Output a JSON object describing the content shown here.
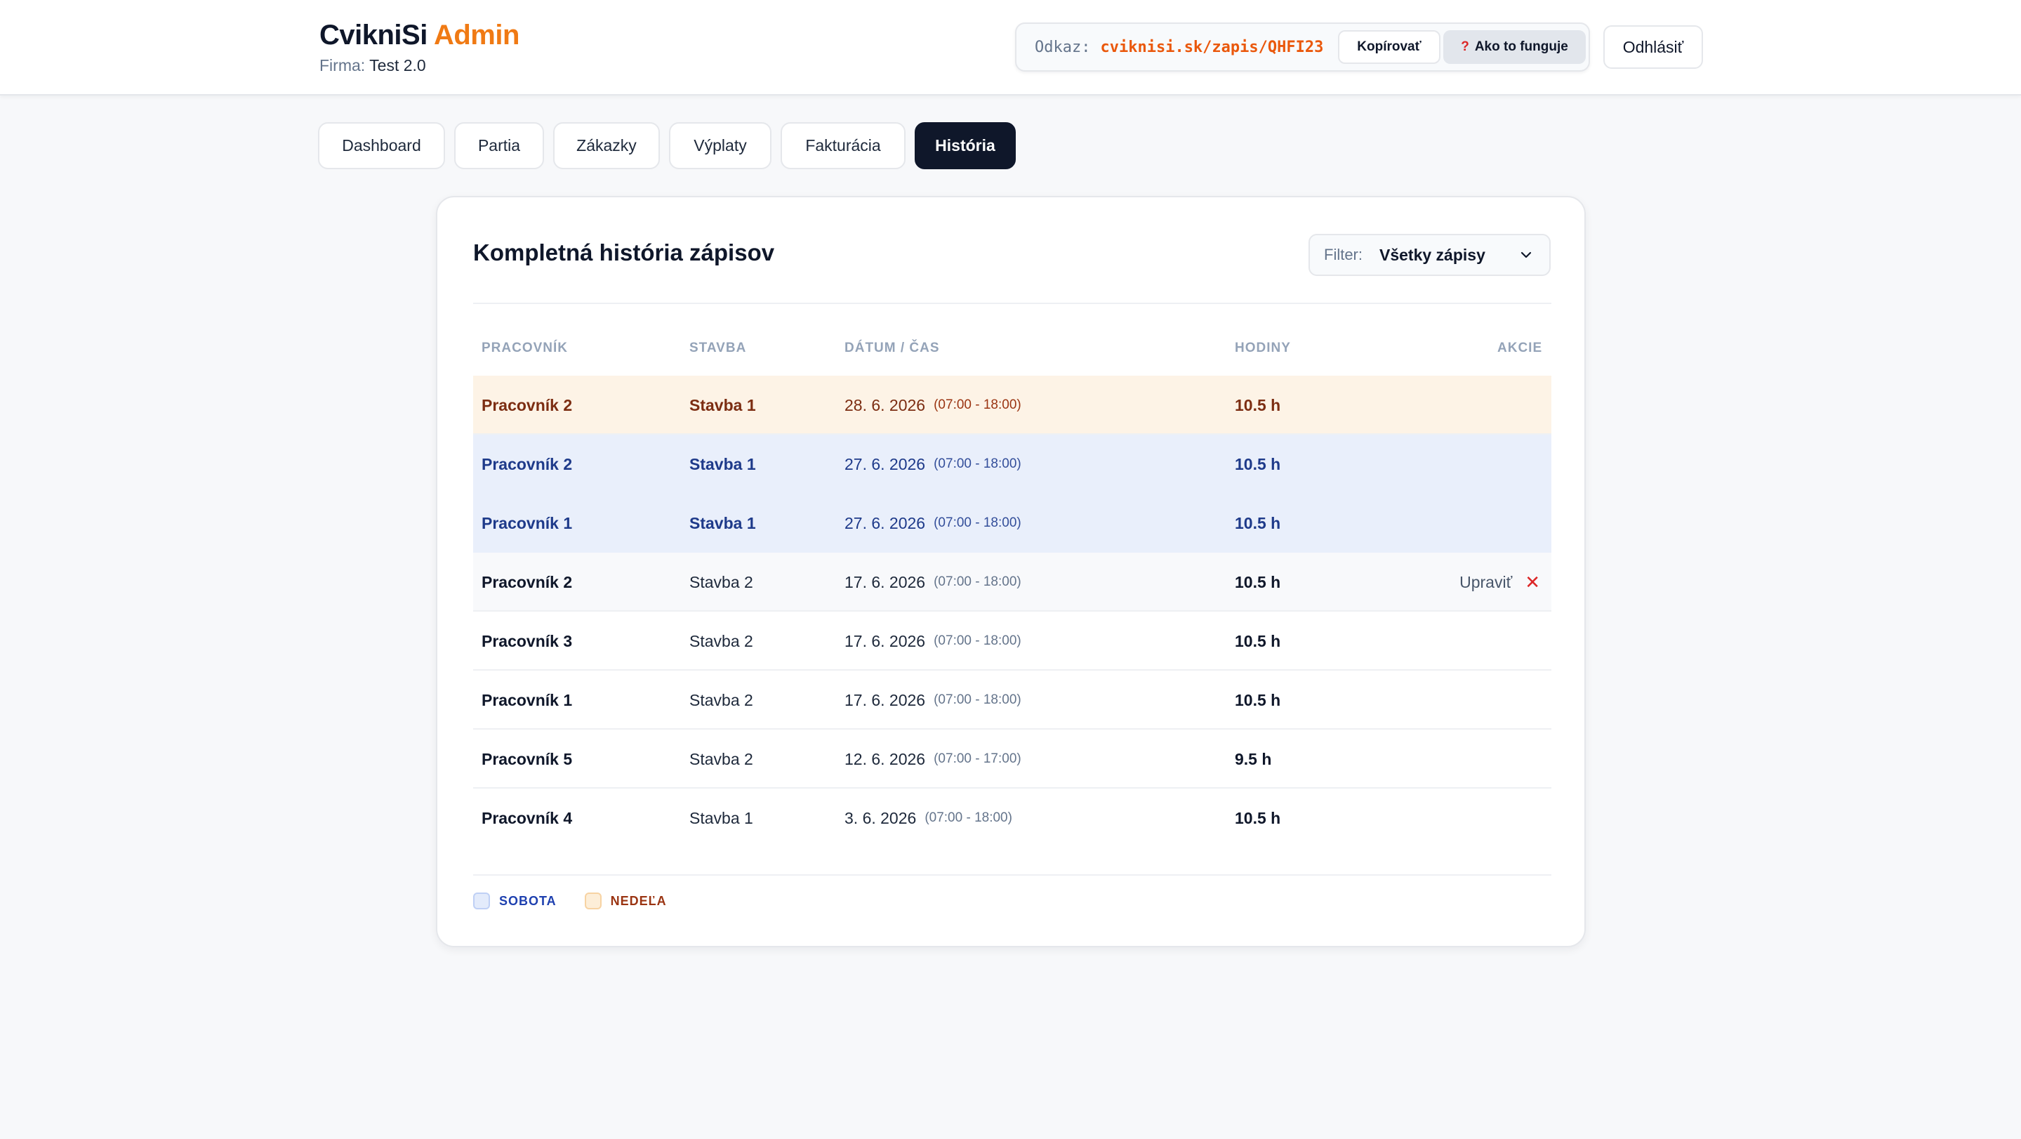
{
  "header": {
    "brand_main": "CvikniSi",
    "brand_accent": "Admin",
    "firm_label": "Firma:",
    "firm_name": "Test 2.0",
    "link_label": "Odkaz:",
    "link_url": "cviknisi.sk/zapis/QHFI23",
    "copy_label": "Kopírovať",
    "help_icon": "question-mark-icon",
    "help_label": "Ako to funguje",
    "logout_label": "Odhlásiť"
  },
  "tabs": [
    {
      "label": "Dashboard",
      "active": false
    },
    {
      "label": "Partia",
      "active": false
    },
    {
      "label": "Zákazky",
      "active": false
    },
    {
      "label": "Výplaty",
      "active": false
    },
    {
      "label": "Fakturácia",
      "active": false
    },
    {
      "label": "História",
      "active": true
    }
  ],
  "card": {
    "title": "Kompletná história zápisov",
    "filter_label": "Filter:",
    "filter_value": "Všetky zápisy"
  },
  "table": {
    "headers": [
      "PRACOVNÍK",
      "STAVBA",
      "DÁTUM / ČAS",
      "HODINY",
      "AKCIE"
    ],
    "rows": [
      {
        "worker": "Pracovník 2",
        "site": "Stavba 1",
        "date": "28. 6. 2026",
        "time": "(07:00 - 18:00)",
        "hours": "10.5 h",
        "day": "sunday",
        "actions": ""
      },
      {
        "worker": "Pracovník 2",
        "site": "Stavba 1",
        "date": "27. 6. 2026",
        "time": "(07:00 - 18:00)",
        "hours": "10.5 h",
        "day": "saturday",
        "actions": ""
      },
      {
        "worker": "Pracovník 1",
        "site": "Stavba 1",
        "date": "27. 6. 2026",
        "time": "(07:00 - 18:00)",
        "hours": "10.5 h",
        "day": "saturday",
        "actions": ""
      },
      {
        "worker": "Pracovník 2",
        "site": "Stavba 2",
        "date": "17. 6. 2026",
        "time": "(07:00 - 18:00)",
        "hours": "10.5 h",
        "day": "weekday",
        "actions": "Upraviť"
      },
      {
        "worker": "Pracovník 3",
        "site": "Stavba 2",
        "date": "17. 6. 2026",
        "time": "(07:00 - 18:00)",
        "hours": "10.5 h",
        "day": "weekday",
        "actions": ""
      },
      {
        "worker": "Pracovník 1",
        "site": "Stavba 2",
        "date": "17. 6. 2026",
        "time": "(07:00 - 18:00)",
        "hours": "10.5 h",
        "day": "weekday",
        "actions": ""
      },
      {
        "worker": "Pracovník 5",
        "site": "Stavba 2",
        "date": "12. 6. 2026",
        "time": "(07:00 - 17:00)",
        "hours": "9.5 h",
        "day": "weekday",
        "actions": ""
      },
      {
        "worker": "Pracovník 4",
        "site": "Stavba 1",
        "date": "3. 6. 2026",
        "time": "(07:00 - 18:00)",
        "hours": "10.5 h",
        "day": "weekday",
        "actions": ""
      }
    ]
  },
  "legend": {
    "saturday": "SOBOTA",
    "sunday": "NEDEĽA"
  },
  "colors": {
    "accent": "#f07a14",
    "link": "#ea580c",
    "saturday_bg": "#e9effb",
    "sunday_bg": "#fdf3e6",
    "delete": "#dc2626",
    "active_tab": "#0f172a"
  }
}
